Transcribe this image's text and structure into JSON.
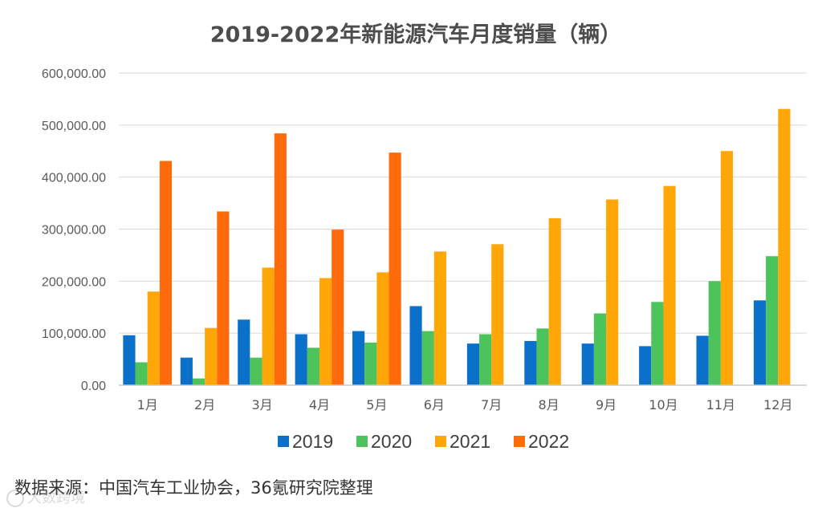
{
  "chart_data": {
    "type": "bar",
    "title": "2019-2022年新能源汽车月度销量（辆）",
    "xlabel": "",
    "ylabel": "",
    "ylim": [
      0,
      600000
    ],
    "yticks": [
      "0.00",
      "100,000.00",
      "200,000.00",
      "300,000.00",
      "400,000.00",
      "500,000.00",
      "600,000.00"
    ],
    "grid": true,
    "legend_position": "bottom",
    "categories": [
      "1月",
      "2月",
      "3月",
      "4月",
      "5月",
      "6月",
      "7月",
      "8月",
      "9月",
      "10月",
      "11月",
      "12月"
    ],
    "series": [
      {
        "name": "2019",
        "color": "#0a70c9",
        "values": [
          96000,
          53000,
          126000,
          98000,
          104000,
          152000,
          80000,
          85000,
          80000,
          75000,
          95000,
          163000
        ]
      },
      {
        "name": "2020",
        "color": "#4dc35b",
        "values": [
          44000,
          13000,
          53000,
          72000,
          82000,
          104000,
          98000,
          109000,
          138000,
          160000,
          200000,
          248000
        ]
      },
      {
        "name": "2021",
        "color": "#ffa608",
        "values": [
          180000,
          110000,
          226000,
          206000,
          217000,
          257000,
          271000,
          321000,
          357000,
          383000,
          450000,
          531000
        ]
      },
      {
        "name": "2022",
        "color": "#ff6a0a",
        "values": [
          431000,
          334000,
          484000,
          299000,
          447000,
          null,
          null,
          null,
          null,
          null,
          null,
          null
        ]
      }
    ]
  },
  "footer": {
    "source": "数据来源：中国汽车工业协会，36氪研究院整理",
    "watermark": "大数跨境"
  },
  "colors": {
    "grid": "#d9d9d9",
    "axis": "#c8c8c8"
  }
}
